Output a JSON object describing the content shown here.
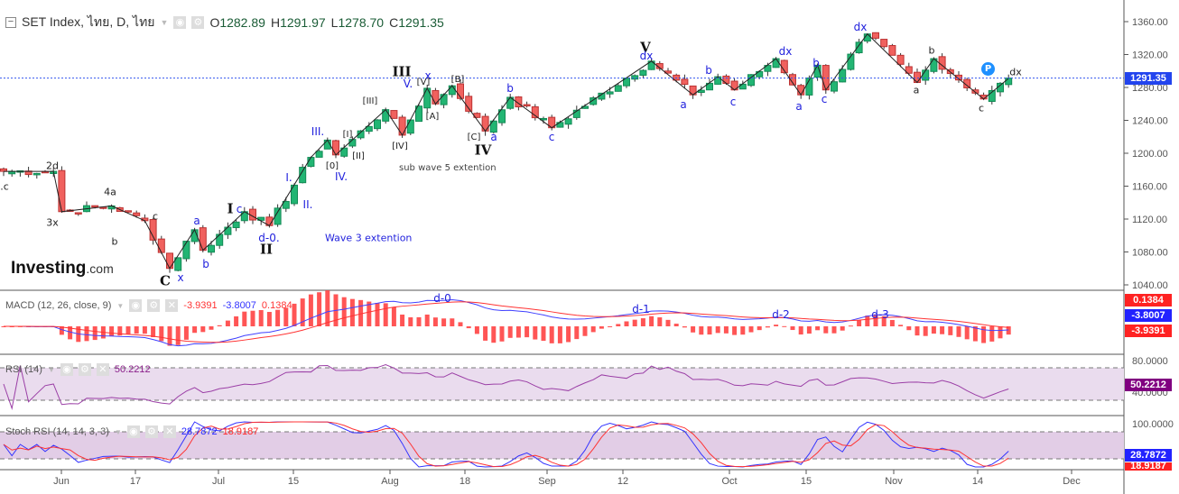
{
  "header": {
    "symbol": "SET Index, ไทย, D, ไทย",
    "open_label": "O",
    "open": "1282.89",
    "high_label": "H",
    "high": "1291.97",
    "low_label": "L",
    "low": "1278.70",
    "close_label": "C",
    "close": "1291.35"
  },
  "logo": {
    "brand": "Investing",
    "suffix": ".com"
  },
  "price_axis": {
    "ticks": [
      "1360.00",
      "1320.00",
      "1280.00",
      "1240.00",
      "1200.00",
      "1160.00",
      "1120.00",
      "1080.00",
      "1040.00"
    ],
    "current": "1291.35",
    "current_value": 1291.35,
    "min": 1040,
    "max": 1360
  },
  "time_axis": [
    "Jun",
    "17",
    "Jul",
    "15",
    "Aug",
    "18",
    "Sep",
    "12",
    "Oct",
    "15",
    "Nov",
    "14",
    "Dec"
  ],
  "colors": {
    "up": "#22b573",
    "down": "#f0615e",
    "blue": "#2222dd",
    "macd": "#4040ff",
    "signal": "#ff3333",
    "rsi": "#9b3fa6",
    "band": "#eadcee"
  },
  "pivots": [
    [
      0,
      1178
    ],
    [
      6,
      1178
    ],
    [
      7,
      1129
    ],
    [
      13,
      1136
    ],
    [
      17,
      1118
    ],
    [
      20,
      1060
    ],
    [
      23,
      1107
    ],
    [
      24,
      1082
    ],
    [
      29,
      1129
    ],
    [
      32,
      1112
    ],
    [
      37,
      1195
    ],
    [
      39,
      1216
    ],
    [
      40,
      1198
    ],
    [
      46,
      1253
    ],
    [
      48,
      1222
    ],
    [
      51,
      1279
    ],
    [
      52,
      1260
    ],
    [
      54,
      1282
    ],
    [
      58,
      1227
    ],
    [
      61,
      1268
    ],
    [
      66,
      1231
    ],
    [
      78,
      1312
    ],
    [
      83,
      1271
    ],
    [
      86,
      1293
    ],
    [
      88,
      1277
    ],
    [
      93,
      1315
    ],
    [
      96,
      1271
    ],
    [
      98,
      1307
    ],
    [
      99,
      1277
    ],
    [
      104,
      1345
    ],
    [
      110,
      1286
    ],
    [
      112,
      1315
    ],
    [
      118,
      1266
    ],
    [
      121,
      1291
    ]
  ],
  "wave_labels": [
    "III",
    "IV",
    "V",
    "I",
    "II",
    "C",
    "2d",
    "3x",
    "4a",
    "b",
    "c",
    ".c",
    "x",
    "a",
    "b",
    "c",
    "d-0.",
    "Wave 3 extention",
    "I.",
    "II.",
    "III.",
    "IV.",
    "V.",
    "x",
    "a",
    "b",
    "c",
    "dx",
    "a",
    "b",
    "c",
    "dx",
    "a",
    "b",
    "c",
    "dx",
    "[III]",
    "[I]",
    "[II]",
    "[0]",
    "[IV]",
    "[V]",
    "[A]",
    "[B]",
    "[C]",
    "sub wave 5 extention",
    "a",
    "b",
    "c",
    "dx",
    "d-0",
    "d-1",
    "d-2",
    "d-3"
  ],
  "badge": "P",
  "macd": {
    "title": "MACD (12, 26, close, 9)",
    "hist": "-3.9391",
    "macd": "-3.8007",
    "signal": "0.1384",
    "tag_signal": "0.1384",
    "tag_macd": "-3.8007",
    "tag_hist": "-3.9391"
  },
  "rsi": {
    "title": "RSI (14)",
    "value": "50.2212",
    "ticks": [
      "80.0000",
      "40.0000"
    ],
    "tag": "50.2212"
  },
  "stoch": {
    "title": "Stoch RSI (14, 14, 3, 3)",
    "k": "28.7872",
    "d": "18.9187",
    "ticks": [
      "100.0000"
    ],
    "tag_k": "28.7872",
    "tag_d": "18.9187"
  }
}
